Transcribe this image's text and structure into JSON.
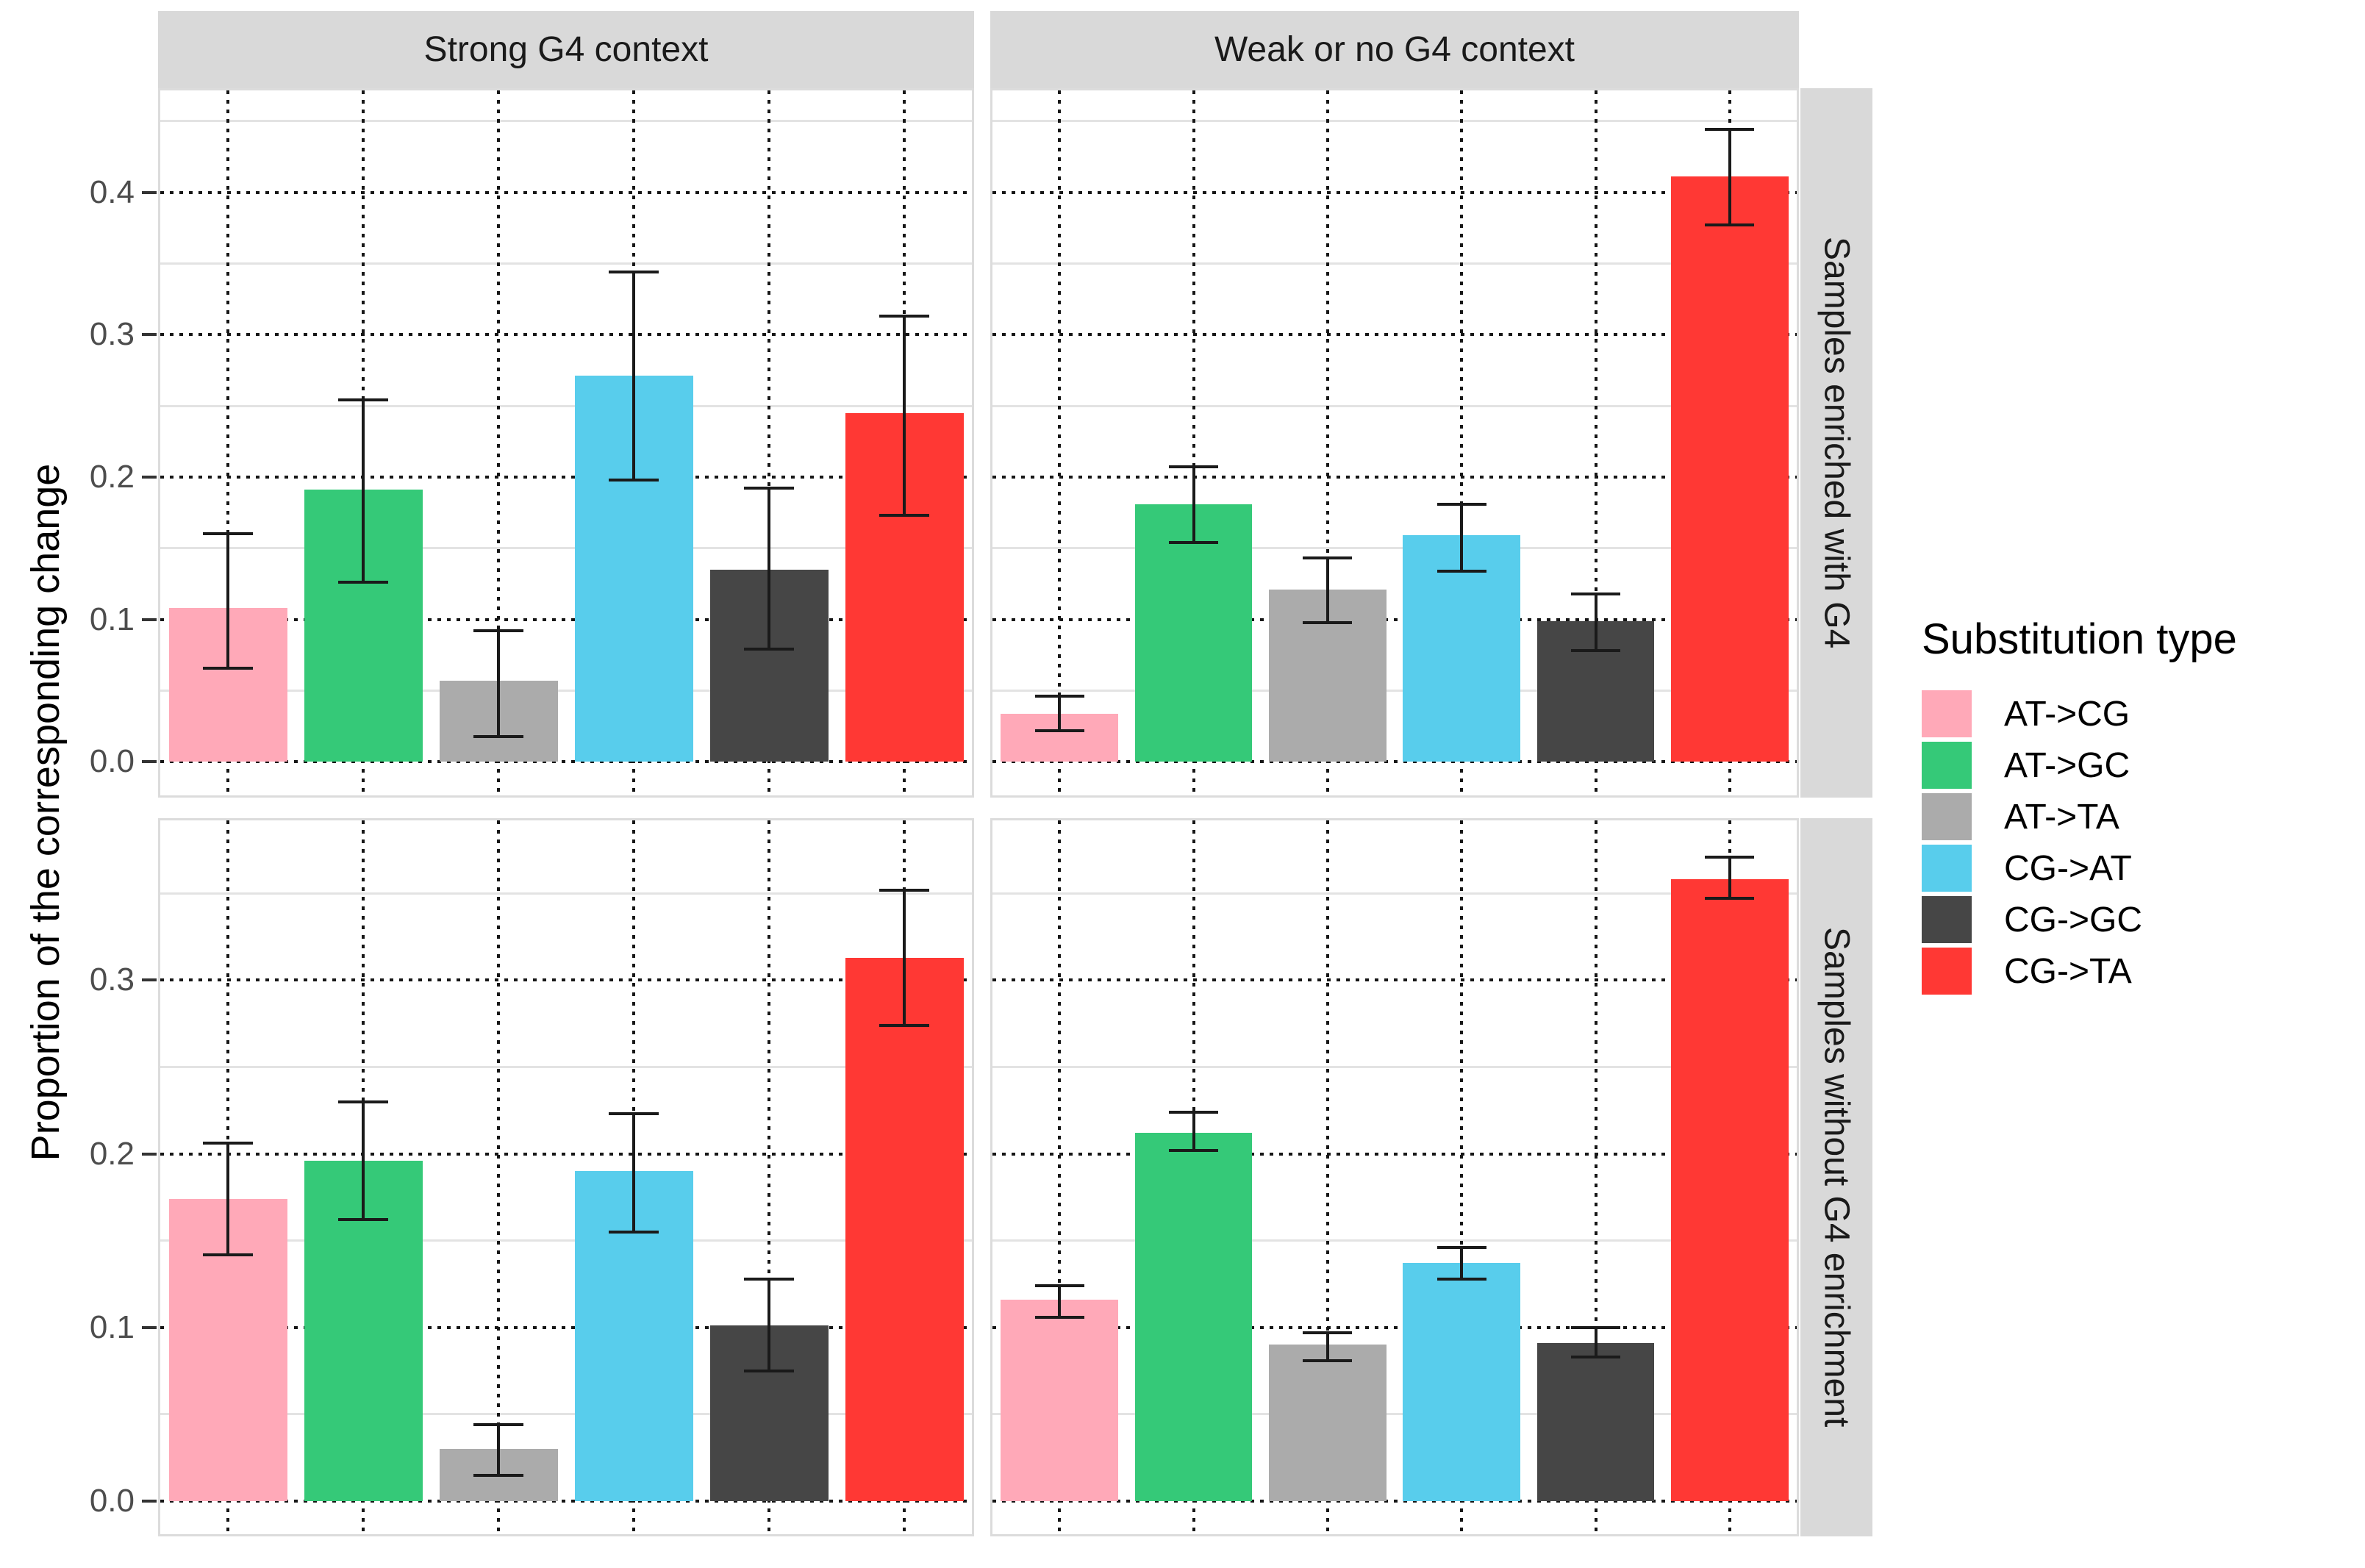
{
  "chart_data": {
    "type": "bar",
    "title": "",
    "ylabel": "Proportion of the corresponding change",
    "legend_title": "Substitution type",
    "legend_position": "right",
    "categories": [
      "AT->CG",
      "AT->GC",
      "AT->TA",
      "CG->AT",
      "CG->GC",
      "CG->TA"
    ],
    "colors": [
      "#FFA9B8",
      "#35C978",
      "#ABABAB",
      "#58CDEC",
      "#464646",
      "#FF3834"
    ],
    "col_facets": [
      "Strong G4 context",
      "Weak or no G4 context"
    ],
    "row_facets": [
      "Samples enriched with G4",
      "Samples without G4 enrichment"
    ],
    "grid": {
      "major": "dotted-black",
      "minor": "solid-light-gray",
      "minor_step": 0.05
    },
    "error_bars": true,
    "rows_axis": [
      {
        "ylim": [
          -0.0235,
          0.4715
        ],
        "yticks": [
          0.0,
          0.1,
          0.2,
          0.3,
          0.4
        ],
        "ytick_labels": [
          "0.0",
          "0.1",
          "0.2",
          "0.3",
          "0.4"
        ]
      },
      {
        "ylim": [
          -0.019,
          0.392
        ],
        "yticks": [
          0.0,
          0.1,
          0.2,
          0.3
        ],
        "ytick_labels": [
          "0.0",
          "0.1",
          "0.2",
          "0.3"
        ]
      }
    ],
    "panels": [
      {
        "row": 0,
        "col": 0,
        "values": [
          0.108,
          0.191,
          0.057,
          0.271,
          0.135,
          0.245
        ],
        "err_lo": [
          0.066,
          0.126,
          0.018,
          0.198,
          0.079,
          0.173
        ],
        "err_hi": [
          0.16,
          0.254,
          0.092,
          0.344,
          0.192,
          0.313
        ]
      },
      {
        "row": 0,
        "col": 1,
        "values": [
          0.034,
          0.181,
          0.121,
          0.159,
          0.099,
          0.411
        ],
        "err_lo": [
          0.022,
          0.154,
          0.098,
          0.134,
          0.078,
          0.377
        ],
        "err_hi": [
          0.046,
          0.207,
          0.143,
          0.181,
          0.118,
          0.444
        ]
      },
      {
        "row": 1,
        "col": 0,
        "values": [
          0.174,
          0.196,
          0.03,
          0.19,
          0.101,
          0.313
        ],
        "err_lo": [
          0.142,
          0.162,
          0.015,
          0.155,
          0.075,
          0.274
        ],
        "err_hi": [
          0.206,
          0.23,
          0.044,
          0.223,
          0.128,
          0.352
        ]
      },
      {
        "row": 1,
        "col": 1,
        "values": [
          0.116,
          0.212,
          0.09,
          0.137,
          0.091,
          0.358
        ],
        "err_lo": [
          0.106,
          0.202,
          0.081,
          0.128,
          0.083,
          0.347
        ],
        "err_hi": [
          0.124,
          0.224,
          0.097,
          0.146,
          0.1,
          0.371
        ]
      }
    ]
  }
}
